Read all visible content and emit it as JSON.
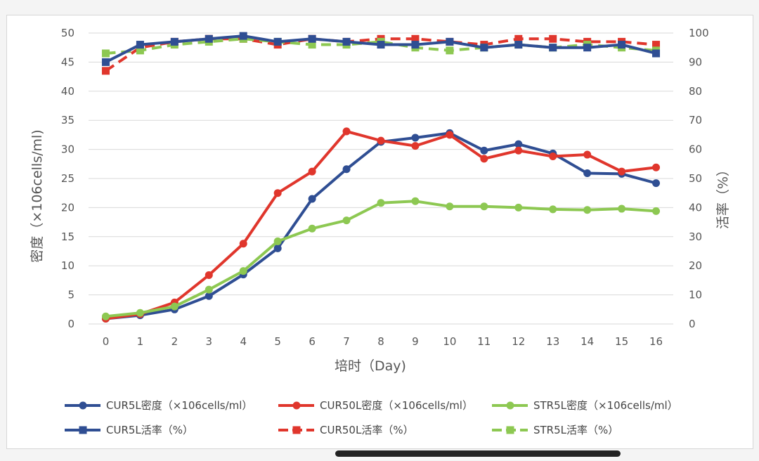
{
  "chart_data": {
    "type": "line",
    "xlabel": "培时（Day)",
    "ylabel": "密度（×106cells/ml)",
    "y2label": "活率（%）",
    "x": [
      0,
      1,
      2,
      3,
      4,
      5,
      6,
      7,
      8,
      9,
      10,
      11,
      12,
      13,
      14,
      15,
      16
    ],
    "ylim": [
      0,
      50
    ],
    "y2lim": [
      0,
      100
    ],
    "yticks": [
      "0",
      "5",
      "10",
      "15",
      "20",
      "25",
      "30",
      "35",
      "40",
      "45",
      "50"
    ],
    "y2ticks": [
      "0",
      "10",
      "20",
      "30",
      "40",
      "50",
      "60",
      "70",
      "80",
      "90",
      "100"
    ],
    "grid": true,
    "legend_position": "bottom",
    "series": [
      {
        "name": "CUR5L密度（×106cells/ml）",
        "axis": "left",
        "color": "#2f4e93",
        "style": "solid",
        "marker": "circle",
        "values": [
          0.9,
          1.5,
          2.5,
          4.8,
          8.5,
          13.0,
          21.5,
          26.6,
          31.3,
          32.0,
          32.8,
          29.8,
          30.9,
          29.3,
          25.9,
          25.8,
          24.2
        ]
      },
      {
        "name": "CUR50L密度（×106cells/ml）",
        "axis": "left",
        "color": "#e0362c",
        "style": "solid",
        "marker": "circle",
        "values": [
          0.9,
          1.7,
          3.7,
          8.4,
          13.8,
          22.5,
          26.2,
          33.1,
          31.5,
          30.6,
          32.5,
          28.4,
          29.8,
          28.8,
          29.1,
          26.2,
          26.9
        ]
      },
      {
        "name": "STR5L密度（×106cells/ml）",
        "axis": "left",
        "color": "#8dc852",
        "style": "solid",
        "marker": "circle",
        "values": [
          1.3,
          1.9,
          3.0,
          5.9,
          9.1,
          14.2,
          16.4,
          17.8,
          20.8,
          21.1,
          20.2,
          20.2,
          20.0,
          19.7,
          19.6,
          19.8,
          19.4
        ]
      },
      {
        "name": "CUR5L活率（%）",
        "axis": "right",
        "color": "#2f4e93",
        "style": "solid",
        "marker": "square",
        "values": [
          90,
          96,
          97,
          98,
          99,
          97,
          98,
          97,
          96,
          96,
          97,
          95,
          96,
          95,
          95,
          96,
          93
        ]
      },
      {
        "name": "CUR50L活率（%）",
        "axis": "right",
        "color": "#e0362c",
        "style": "dashed",
        "marker": "square",
        "values": [
          87,
          95,
          97,
          98,
          98,
          96,
          98,
          97,
          98,
          98,
          97,
          96,
          98,
          98,
          97,
          97,
          96
        ]
      },
      {
        "name": "STR5L活率（%）",
        "axis": "right",
        "color": "#8dc852",
        "style": "dashed",
        "marker": "square",
        "values": [
          93,
          94,
          96,
          97,
          98,
          97,
          96,
          96,
          97,
          95,
          94,
          95,
          96,
          95,
          96,
          95,
          94
        ]
      }
    ]
  }
}
